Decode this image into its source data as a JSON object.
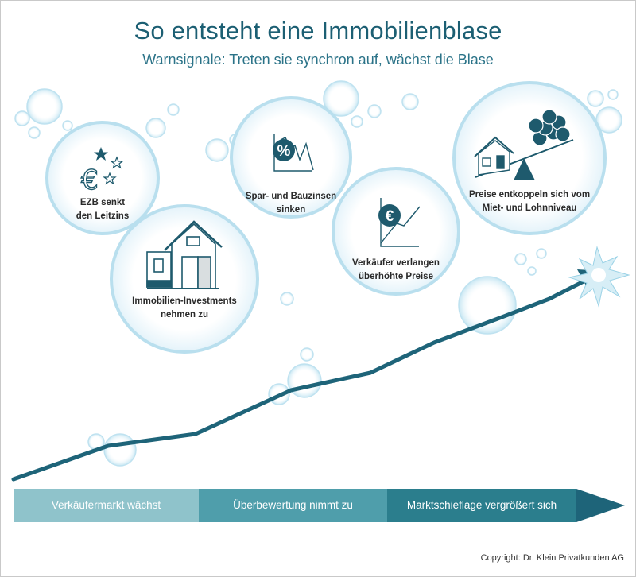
{
  "title": "So entsteht eine Immobilienblase",
  "subtitle": "Warnsignale: Treten sie synchron auf, wächst die Blase",
  "signals": [
    {
      "line1": "EZB senkt",
      "line2": "den Leitzins",
      "icon": "euro-stars-icon"
    },
    {
      "line1": "Immobilien-Investments",
      "line2": "nehmen zu",
      "icon": "houses-icon"
    },
    {
      "line1": "Spar- und Bauzinsen",
      "line2": "sinken",
      "icon": "percent-falling-chart-icon"
    },
    {
      "line1": "Verkäufer verlangen",
      "line2": "überhöhte Preise",
      "icon": "euro-rising-chart-icon"
    },
    {
      "line1": "Preise entkoppeln sich vom",
      "line2": "Miet- und Lohnniveau",
      "icon": "house-coins-seesaw-icon"
    }
  ],
  "icon_glyphs": {
    "percent": "%",
    "euro": "€"
  },
  "phases": [
    {
      "label": "Verkäufermarkt wächst",
      "color": "#8fc3cb"
    },
    {
      "label": "Überbewertung nimmt zu",
      "color": "#4f9eab"
    },
    {
      "label": "Marktschieflage vergrößert sich",
      "color": "#2b7e8d"
    }
  ],
  "colors": {
    "title": "#1c5f73",
    "trend_line": "#1e6479",
    "bubble_outline": "#b9dfee",
    "icon_dark": "#1e5a6d",
    "arrow_tip": "#1f6c7e"
  },
  "copyright": "Copyright: Dr. Klein Privatkunden AG"
}
